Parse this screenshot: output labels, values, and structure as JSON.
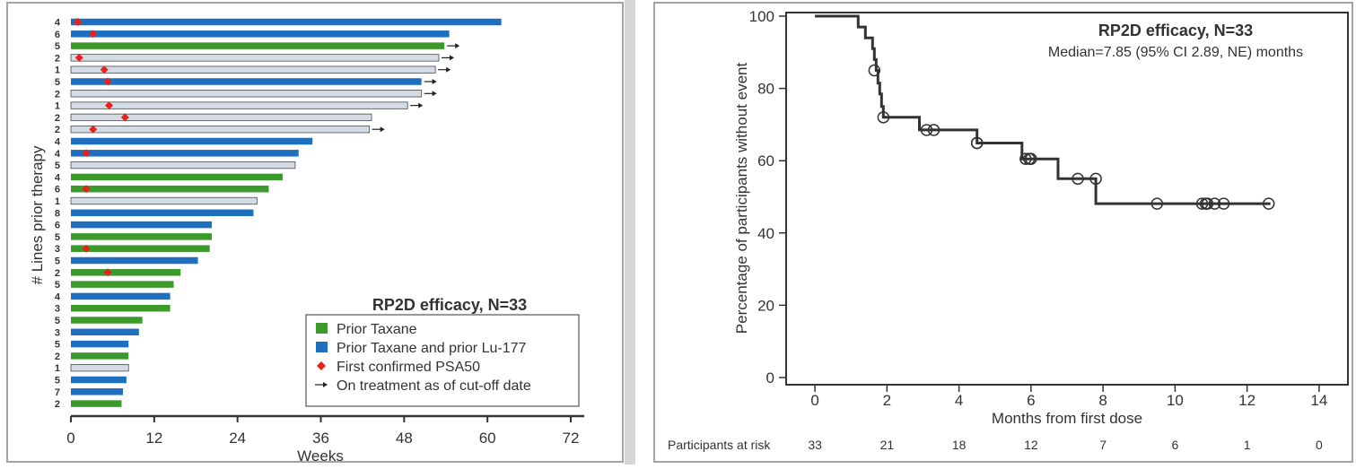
{
  "chart_data": [
    {
      "type": "bar",
      "orientation": "horizontal",
      "title": "RP2D efficacy, N=33",
      "xlabel": "Weeks",
      "ylabel": "# Lines prior therapy",
      "xlim": [
        0,
        72
      ],
      "xticks": [
        "0",
        "12",
        "24",
        "36",
        "48",
        "60",
        "72"
      ],
      "legend_position": "bottom-right",
      "legend": [
        {
          "label": "Prior Taxane",
          "marker": "square",
          "color": "#3b9a2b"
        },
        {
          "label": "Prior Taxane and prior Lu-177",
          "marker": "square",
          "color": "#1e6fbf"
        },
        {
          "label": "First confirmed PSA50",
          "marker": "diamond",
          "color": "#e8211b"
        },
        {
          "label": "On treatment as of cut-off date",
          "marker": "arrow",
          "color": "#222222"
        }
      ],
      "group_colors": {
        "taxane": "#3b9a2b",
        "lu": "#1e6fbf",
        "other": "#d3dce6"
      },
      "bars": [
        {
          "label": "4",
          "weeks": 62.0,
          "group": "lu",
          "psa50": 1.0,
          "ongoing": false
        },
        {
          "label": "6",
          "weeks": 54.5,
          "group": "lu",
          "psa50": 3.2,
          "ongoing": false
        },
        {
          "label": "5",
          "weeks": 53.8,
          "group": "taxane",
          "psa50": null,
          "ongoing": true
        },
        {
          "label": "2",
          "weeks": 53.0,
          "group": "other",
          "psa50": 1.2,
          "ongoing": true
        },
        {
          "label": "1",
          "weeks": 52.5,
          "group": "other",
          "psa50": 4.8,
          "ongoing": true
        },
        {
          "label": "5",
          "weeks": 50.5,
          "group": "lu",
          "psa50": 5.3,
          "ongoing": true
        },
        {
          "label": "2",
          "weeks": 50.5,
          "group": "other",
          "psa50": null,
          "ongoing": true
        },
        {
          "label": "1",
          "weeks": 48.5,
          "group": "other",
          "psa50": 5.5,
          "ongoing": true
        },
        {
          "label": "2",
          "weeks": 43.3,
          "group": "other",
          "psa50": 7.8,
          "ongoing": false
        },
        {
          "label": "2",
          "weeks": 43.0,
          "group": "other",
          "psa50": 3.2,
          "ongoing": true
        },
        {
          "label": "4",
          "weeks": 34.8,
          "group": "lu",
          "psa50": null,
          "ongoing": false
        },
        {
          "label": "4",
          "weeks": 32.8,
          "group": "lu",
          "psa50": 2.2,
          "ongoing": false
        },
        {
          "label": "5",
          "weeks": 32.3,
          "group": "other",
          "psa50": null,
          "ongoing": false
        },
        {
          "label": "4",
          "weeks": 30.5,
          "group": "taxane",
          "psa50": null,
          "ongoing": false
        },
        {
          "label": "6",
          "weeks": 28.5,
          "group": "taxane",
          "psa50": 2.2,
          "ongoing": false
        },
        {
          "label": "1",
          "weeks": 26.8,
          "group": "other",
          "psa50": null,
          "ongoing": false
        },
        {
          "label": "8",
          "weeks": 26.3,
          "group": "lu",
          "psa50": null,
          "ongoing": false
        },
        {
          "label": "6",
          "weeks": 20.3,
          "group": "lu",
          "psa50": null,
          "ongoing": false
        },
        {
          "label": "5",
          "weeks": 20.3,
          "group": "taxane",
          "psa50": null,
          "ongoing": false
        },
        {
          "label": "3",
          "weeks": 20.0,
          "group": "taxane",
          "psa50": 2.2,
          "ongoing": false
        },
        {
          "label": "5",
          "weeks": 18.3,
          "group": "lu",
          "psa50": null,
          "ongoing": false
        },
        {
          "label": "2",
          "weeks": 15.8,
          "group": "taxane",
          "psa50": 5.3,
          "ongoing": false
        },
        {
          "label": "5",
          "weeks": 14.8,
          "group": "taxane",
          "psa50": null,
          "ongoing": false
        },
        {
          "label": "4",
          "weeks": 14.3,
          "group": "lu",
          "psa50": null,
          "ongoing": false
        },
        {
          "label": "3",
          "weeks": 14.3,
          "group": "taxane",
          "psa50": null,
          "ongoing": false
        },
        {
          "label": "5",
          "weeks": 10.3,
          "group": "taxane",
          "psa50": null,
          "ongoing": false
        },
        {
          "label": "3",
          "weeks": 9.8,
          "group": "lu",
          "psa50": null,
          "ongoing": false
        },
        {
          "label": "5",
          "weeks": 8.3,
          "group": "lu",
          "psa50": null,
          "ongoing": false
        },
        {
          "label": "2",
          "weeks": 8.3,
          "group": "taxane",
          "psa50": null,
          "ongoing": false
        },
        {
          "label": "1",
          "weeks": 8.3,
          "group": "other",
          "psa50": null,
          "ongoing": false
        },
        {
          "label": "5",
          "weeks": 8.0,
          "group": "lu",
          "psa50": null,
          "ongoing": false
        },
        {
          "label": "7",
          "weeks": 7.5,
          "group": "lu",
          "psa50": null,
          "ongoing": false
        },
        {
          "label": "2",
          "weeks": 7.3,
          "group": "taxane",
          "psa50": null,
          "ongoing": false
        }
      ]
    },
    {
      "type": "line",
      "subtype": "kaplan-meier",
      "title": "RP2D efficacy, N=33",
      "subtitle": "Median=7.85 (95% CI 2.89, NE) months",
      "xlabel": "Months from first dose",
      "ylabel": "Percentage of participants without event",
      "xlim": [
        -0.8,
        14.8
      ],
      "ylim": [
        -2,
        101
      ],
      "xticks": [
        "0",
        "2",
        "4",
        "6",
        "8",
        "10",
        "12",
        "14"
      ],
      "yticks": [
        "0",
        "20",
        "40",
        "60",
        "80",
        "100"
      ],
      "line_color": "#333333",
      "steps": [
        [
          0,
          100
        ],
        [
          1.2,
          100
        ],
        [
          1.2,
          97
        ],
        [
          1.4,
          97
        ],
        [
          1.4,
          94
        ],
        [
          1.6,
          94
        ],
        [
          1.6,
          91
        ],
        [
          1.65,
          91
        ],
        [
          1.65,
          88
        ],
        [
          1.7,
          88
        ],
        [
          1.7,
          85
        ],
        [
          1.75,
          85
        ],
        [
          1.75,
          81.5
        ],
        [
          1.8,
          81.5
        ],
        [
          1.8,
          78.5
        ],
        [
          1.85,
          78.5
        ],
        [
          1.85,
          75
        ],
        [
          1.9,
          75
        ],
        [
          1.9,
          72
        ],
        [
          2.9,
          72
        ],
        [
          2.9,
          68.5
        ],
        [
          4.5,
          68.5
        ],
        [
          4.5,
          64.9
        ],
        [
          5.75,
          64.9
        ],
        [
          5.75,
          60.5
        ],
        [
          6.75,
          60.5
        ],
        [
          6.75,
          55
        ],
        [
          7.8,
          55
        ],
        [
          7.8,
          48.1
        ],
        [
          12.65,
          48.1
        ]
      ],
      "censored": [
        [
          1.65,
          85
        ],
        [
          1.9,
          72
        ],
        [
          3.1,
          68.5
        ],
        [
          3.3,
          68.5
        ],
        [
          4.5,
          64.9
        ],
        [
          4.5,
          64.9
        ],
        [
          5.85,
          60.5
        ],
        [
          5.95,
          60.5
        ],
        [
          6.0,
          60.5
        ],
        [
          7.3,
          55
        ],
        [
          7.8,
          55
        ],
        [
          9.5,
          48.1
        ],
        [
          10.75,
          48.1
        ],
        [
          10.85,
          48.1
        ],
        [
          10.9,
          48.1
        ],
        [
          11.1,
          48.1
        ],
        [
          11.35,
          48.1
        ],
        [
          12.6,
          48.1
        ]
      ],
      "at_risk_label": "Participants at risk",
      "at_risk": [
        {
          "month": 0,
          "n": "33"
        },
        {
          "month": 2,
          "n": "21"
        },
        {
          "month": 4,
          "n": "18"
        },
        {
          "month": 6,
          "n": "12"
        },
        {
          "month": 8,
          "n": "7"
        },
        {
          "month": 10,
          "n": "6"
        },
        {
          "month": 12,
          "n": "1"
        },
        {
          "month": 14,
          "n": "0"
        }
      ]
    }
  ]
}
